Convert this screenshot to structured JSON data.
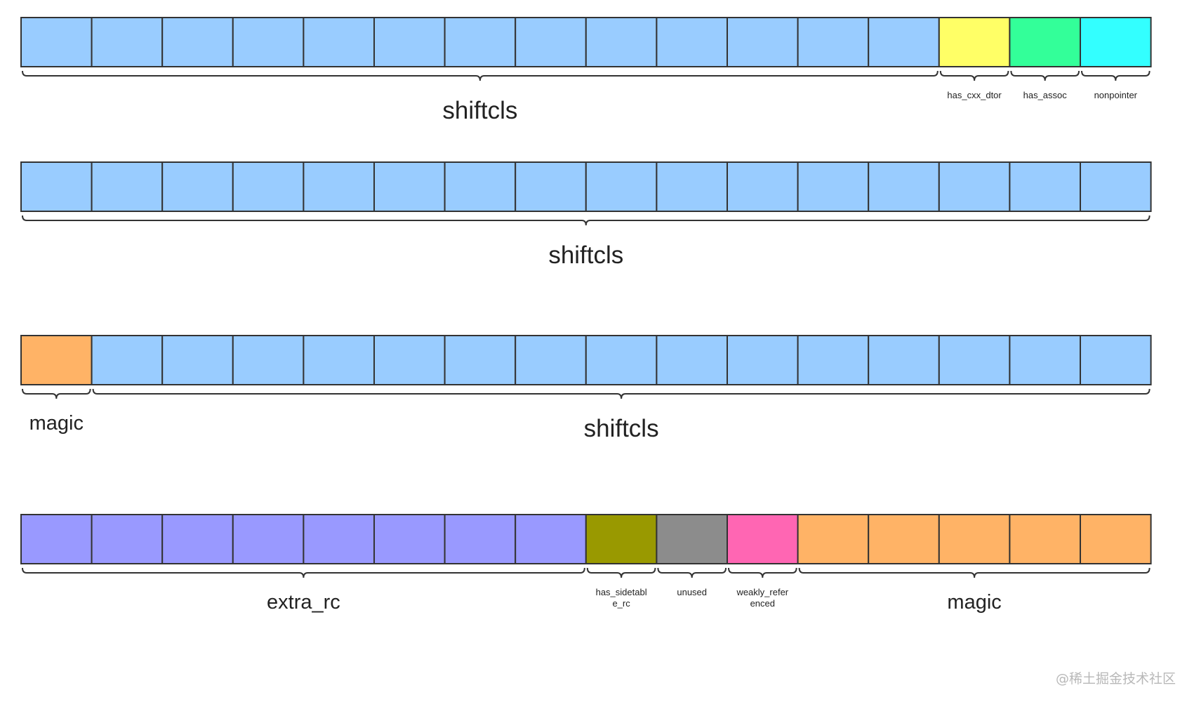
{
  "colors": {
    "shiftcls": "#99ccff",
    "has_cxx_dtor": "#ffff66",
    "has_assoc": "#33ff99",
    "nonpointer": "#33ffff",
    "magic": "#ffb366",
    "extra_rc": "#9999ff",
    "has_sidetable_rc": "#999900",
    "unused": "#8c8c8c",
    "weakly_referenced": "#ff66b3",
    "stroke": "#333333"
  },
  "rows": [
    {
      "segments": [
        {
          "name": "shiftcls",
          "cells": 13,
          "color": "shiftcls",
          "label": "shiftcls",
          "size": "big"
        },
        {
          "name": "has_cxx_dtor",
          "cells": 1,
          "color": "has_cxx_dtor",
          "label": "has_cxx_dtor",
          "size": "small"
        },
        {
          "name": "has_assoc",
          "cells": 1,
          "color": "has_assoc",
          "label": "has_assoc",
          "size": "small"
        },
        {
          "name": "nonpointer",
          "cells": 1,
          "color": "nonpointer",
          "label": "nonpointer",
          "size": "small"
        }
      ]
    },
    {
      "segments": [
        {
          "name": "shiftcls",
          "cells": 16,
          "color": "shiftcls",
          "label": "shiftcls",
          "size": "big"
        }
      ]
    },
    {
      "segments": [
        {
          "name": "magic",
          "cells": 1,
          "color": "magic",
          "label": "magic",
          "size": "mid"
        },
        {
          "name": "shiftcls",
          "cells": 15,
          "color": "shiftcls",
          "label": "shiftcls",
          "size": "big"
        }
      ]
    },
    {
      "segments": [
        {
          "name": "extra_rc",
          "cells": 8,
          "color": "extra_rc",
          "label": "extra_rc",
          "size": "mid"
        },
        {
          "name": "has_sidetable_rc",
          "cells": 1,
          "color": "has_sidetable_rc",
          "label": "has_sidetabl\ne_rc",
          "size": "small"
        },
        {
          "name": "unused",
          "cells": 1,
          "color": "unused",
          "label": "unused",
          "size": "small"
        },
        {
          "name": "weakly_referenced",
          "cells": 1,
          "color": "weakly_referenced",
          "label": "weakly_refer\nenced",
          "size": "small"
        },
        {
          "name": "magic",
          "cells": 5,
          "color": "magic",
          "label": "magic",
          "size": "mid"
        }
      ]
    }
  ],
  "watermark": "@稀土掘金技术社区"
}
